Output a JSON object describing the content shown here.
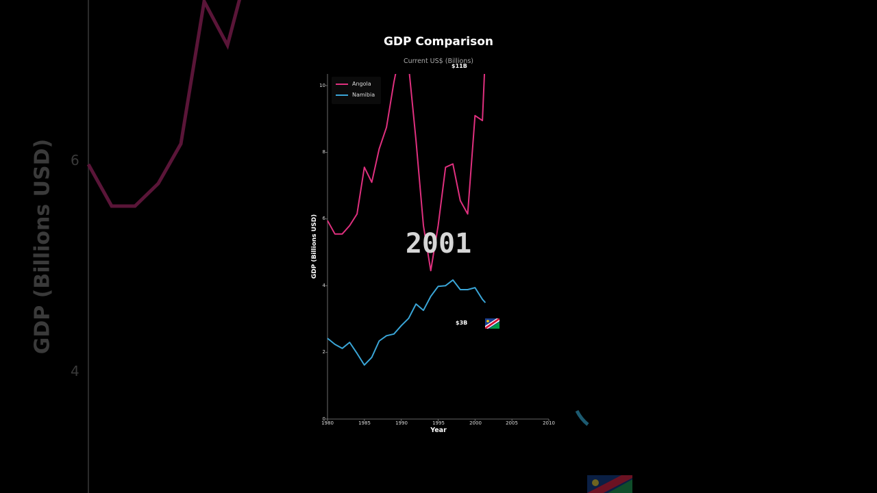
{
  "chart_data": {
    "type": "line",
    "title": "GDP Comparison",
    "subtitle": "Current US$ (Billions)",
    "xlabel": "Year",
    "ylabel": "GDP (Billions USD)",
    "xlim": [
      1980,
      2010
    ],
    "ylim": [
      0,
      10.4
    ],
    "x_ticks": [
      "1980",
      "1985",
      "1990",
      "1995",
      "2000",
      "2005",
      "2010"
    ],
    "y_ticks": [
      "0",
      "2",
      "4",
      "6",
      "8",
      "10"
    ],
    "grid": false,
    "legend_position": "upper left",
    "current_year": "2001",
    "x": [
      1980,
      1981,
      1982,
      1983,
      1984,
      1985,
      1986,
      1987,
      1988,
      1989,
      1990,
      1991,
      1992,
      1993,
      1994,
      1995,
      1996,
      1997,
      1998,
      1999,
      2000,
      2001
    ],
    "series": [
      {
        "name": "Angola",
        "color": "#e0307f",
        "values": [
          5.95,
          5.55,
          5.55,
          5.8,
          6.15,
          7.55,
          7.1,
          8.1,
          8.75,
          10.1,
          11.2,
          10.6,
          8.35,
          5.8,
          4.45,
          5.8,
          7.55,
          7.65,
          6.55,
          6.15,
          9.1,
          8.95
        ],
        "end_point": {
          "x": 2001.4,
          "value": 11.0
        },
        "end_label": "$11B"
      },
      {
        "name": "Namibia",
        "color": "#3aa6d8",
        "values": [
          2.42,
          2.24,
          2.12,
          2.3,
          1.97,
          1.62,
          1.85,
          2.34,
          2.5,
          2.55,
          2.8,
          3.02,
          3.45,
          3.26,
          3.68,
          3.98,
          4.0,
          4.17,
          3.88,
          3.88,
          3.94,
          3.59
        ],
        "end_point": {
          "x": 2001.4,
          "value": 3.49
        },
        "end_label": "$3B"
      }
    ]
  },
  "background": {
    "ylabel": "GDP (Billions USD)",
    "ticks": [
      "6",
      "4"
    ]
  }
}
